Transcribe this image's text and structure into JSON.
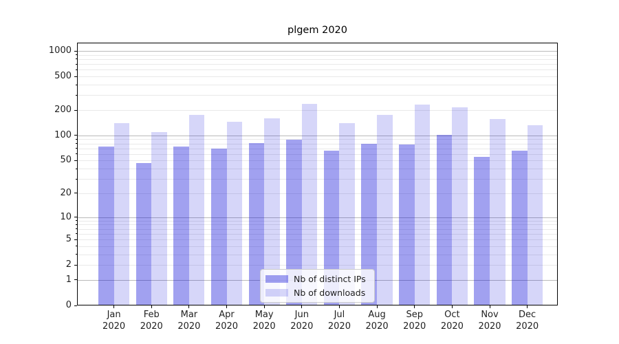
{
  "chart_data": {
    "type": "bar",
    "title": "plgem 2020",
    "categories": [
      "Jan\n2020",
      "Feb\n2020",
      "Mar\n2020",
      "Apr\n2020",
      "May\n2020",
      "Jun\n2020",
      "Jul\n2020",
      "Aug\n2020",
      "Sep\n2020",
      "Oct\n2020",
      "Nov\n2020",
      "Dec\n2020"
    ],
    "series": [
      {
        "name": "Nb of distinct IPs",
        "color": "rgba(0,0,215,0.37)",
        "values": [
          72,
          46,
          73,
          68,
          79,
          88,
          64,
          78,
          77,
          100,
          54,
          65
        ]
      },
      {
        "name": "Nb of downloads",
        "color": "rgba(0,0,215,0.16)",
        "values": [
          137,
          107,
          172,
          144,
          158,
          233,
          137,
          172,
          230,
          213,
          154,
          130
        ]
      }
    ],
    "xlabel": "",
    "ylabel": "",
    "yscale": "log1p",
    "ylim": [
      0,
      1250
    ],
    "y_ticks": [
      0,
      1,
      2,
      5,
      10,
      20,
      50,
      100,
      200,
      500,
      1000
    ],
    "y_major_gridlines": [
      1,
      10,
      100,
      1000
    ],
    "y_minor_gridlines": [
      2,
      3,
      4,
      5,
      6,
      7,
      8,
      9,
      20,
      30,
      40,
      50,
      60,
      70,
      80,
      90,
      200,
      300,
      400,
      500,
      600,
      700,
      800,
      900
    ],
    "grid": true,
    "legend_position": "lower-center",
    "colors": {
      "major_grid": "#b9b9b9",
      "minor_grid": "#e9e9e9",
      "spine": "#000000",
      "text": "#1f1f1f"
    }
  }
}
